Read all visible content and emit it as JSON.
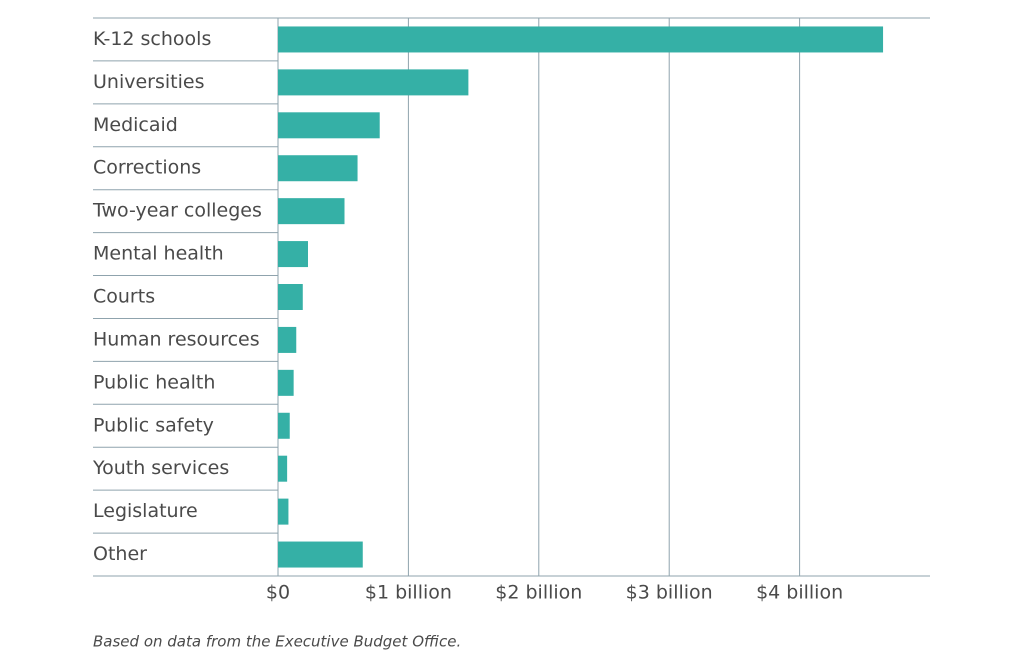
{
  "chart_data": {
    "type": "hbar",
    "categories": [
      "K-12 schools",
      "Universities",
      "Medicaid",
      "Corrections",
      "Two-year colleges",
      "Mental health",
      "Courts",
      "Human resources",
      "Public health",
      "Public safety",
      "Youth services",
      "Legislature",
      "Other"
    ],
    "values": [
      4.64,
      1.46,
      0.78,
      0.61,
      0.51,
      0.23,
      0.19,
      0.14,
      0.12,
      0.09,
      0.07,
      0.08,
      0.65
    ],
    "color": "#35b0a6",
    "xlim": [
      0,
      5
    ],
    "xticks": [
      {
        "value": 0,
        "label": "$0"
      },
      {
        "value": 1,
        "label": "$1 billion"
      },
      {
        "value": 2,
        "label": "$2 billion"
      },
      {
        "value": 3,
        "label": "$3 billion"
      },
      {
        "value": 4,
        "label": "$4 billion"
      }
    ],
    "grid": true,
    "source": "Based on data from the Executive Budget Office."
  }
}
